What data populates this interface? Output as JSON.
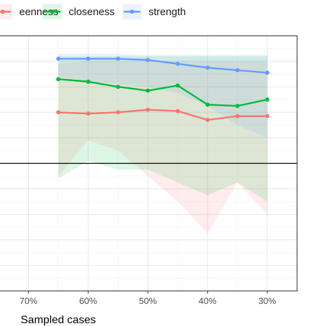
{
  "chart_data": {
    "type": "line",
    "xlabel": "Sampled cases",
    "x_ticks": [
      "70%",
      "60%",
      "50%",
      "40%",
      "30%"
    ],
    "x_tick_values": [
      70,
      60,
      50,
      40,
      30
    ],
    "x": [
      65,
      60,
      55,
      50,
      45,
      40,
      35,
      30
    ],
    "xlim": [
      75,
      25
    ],
    "ylim": [
      -1.0,
      1.0
    ],
    "reference_line_y": 0,
    "grid": true,
    "legend_position": "top",
    "series": [
      {
        "name": "betweenness",
        "color": "#f8766d",
        "fill": "#f8766d",
        "values": [
          0.4,
          0.39,
          0.4,
          0.42,
          0.41,
          0.34,
          0.37,
          0.37
        ],
        "lower": [
          -0.1,
          0.18,
          0.1,
          -0.1,
          -0.3,
          -0.55,
          -0.15,
          -0.4
        ],
        "upper": [
          0.78,
          0.8,
          0.8,
          0.8,
          0.8,
          0.8,
          0.8,
          0.8
        ]
      },
      {
        "name": "closeness",
        "color": "#00ba38",
        "fill": "#00ba38",
        "values": [
          0.66,
          0.64,
          0.6,
          0.57,
          0.61,
          0.46,
          0.45,
          0.5
        ],
        "lower": [
          -0.12,
          0.02,
          -0.05,
          -0.05,
          -0.15,
          -0.25,
          -0.15,
          -0.3
        ],
        "upper": [
          0.84,
          0.84,
          0.84,
          0.84,
          0.84,
          0.84,
          0.84,
          0.84
        ]
      },
      {
        "name": "strength",
        "color": "#619cff",
        "fill": "#619cff",
        "values": [
          0.82,
          0.82,
          0.82,
          0.81,
          0.78,
          0.75,
          0.73,
          0.71
        ],
        "lower": [
          0.68,
          0.64,
          0.62,
          0.6,
          0.55,
          0.45,
          0.3,
          0.2
        ],
        "upper": [
          0.86,
          0.86,
          0.86,
          0.85,
          0.85,
          0.85,
          0.85,
          0.85
        ]
      }
    ],
    "legend_labels": [
      "eenness",
      "closeness",
      "strength"
    ]
  }
}
